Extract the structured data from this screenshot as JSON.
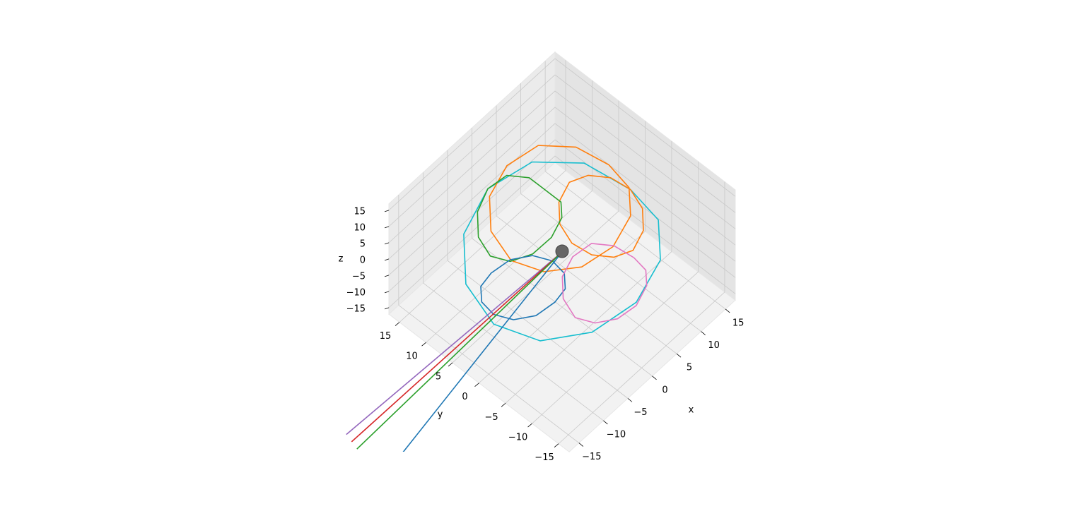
{
  "chart_data": {
    "type": "line3d",
    "xlabel": "x",
    "ylabel": "y",
    "zlabel": "z",
    "xlim": [
      -17,
      17
    ],
    "ylim": [
      -17,
      17
    ],
    "zlim": [
      -17,
      17
    ],
    "xticks": [
      {
        "value": -15,
        "label": "−15"
      },
      {
        "value": -10,
        "label": "−10"
      },
      {
        "value": -5,
        "label": "−5"
      },
      0,
      5,
      10,
      15
    ],
    "yticks": [
      {
        "value": -15,
        "label": "−15"
      },
      {
        "value": -10,
        "label": "−10"
      },
      {
        "value": -5,
        "label": "−5"
      },
      0,
      5,
      10,
      15
    ],
    "zticks": [
      {
        "value": -15,
        "label": "−15"
      },
      {
        "value": -10,
        "label": "−10"
      },
      {
        "value": -5,
        "label": "−5"
      },
      0,
      5,
      10,
      15
    ],
    "grid": true,
    "series": [
      {
        "color": "#17becf",
        "x": [
          14,
          12.1,
          7,
          0,
          -7,
          -12.1,
          -14,
          -12.1,
          -7,
          0,
          7,
          12.1,
          14
        ],
        "y": [
          0,
          7,
          12.1,
          14,
          12.1,
          7,
          0,
          -7,
          -12.1,
          -14,
          -12.1,
          -7,
          0
        ],
        "z": [
          0,
          2,
          3,
          2,
          0,
          -2,
          -3,
          -2,
          0,
          2,
          3,
          2,
          0
        ]
      },
      {
        "color": "#ff7f0e",
        "x": [
          15,
          13.7,
          10,
          5,
          0,
          -3.7,
          -5,
          -3.7,
          0,
          5,
          10,
          13.7,
          15
        ],
        "y": [
          5,
          10,
          13.7,
          15,
          13.7,
          10,
          5,
          0,
          -3.7,
          -5,
          -3.7,
          0,
          5
        ],
        "z": [
          0,
          1,
          2,
          1,
          0,
          -1,
          -2,
          -1,
          0,
          1,
          2,
          1,
          0
        ]
      },
      {
        "color": "#ff7f0e",
        "x": [
          14,
          13.2,
          11,
          8,
          5,
          2.8,
          2,
          2.8,
          5,
          8,
          11,
          13.2,
          14
        ],
        "y": [
          0,
          3,
          5.2,
          6,
          5.2,
          3,
          0,
          -3,
          -5.2,
          -6,
          -5.2,
          -3,
          0
        ],
        "z": [
          0,
          1,
          2,
          3,
          2,
          1,
          0,
          -1,
          -2,
          -3,
          -2,
          -1,
          0
        ]
      },
      {
        "color": "#2ca02c",
        "x": [
          6,
          5.2,
          3,
          0,
          -3,
          -5.2,
          -6,
          -5.2,
          -3,
          0,
          3,
          5.2,
          6
        ],
        "y": [
          8,
          11,
          13.2,
          14,
          13.2,
          11,
          8,
          5,
          2.8,
          2,
          2.8,
          5,
          8
        ],
        "z": [
          0,
          2,
          3,
          2,
          0,
          -2,
          -3,
          -2,
          0,
          2,
          3,
          2,
          0
        ]
      },
      {
        "color": "#1f77b4",
        "x": [
          -2,
          -2.8,
          -5,
          -8,
          -11,
          -13.2,
          -14,
          -13.2,
          -11,
          -8,
          -5,
          -2.8,
          -2
        ],
        "y": [
          0,
          3,
          5.2,
          6,
          5.2,
          3,
          0,
          -3,
          -5.2,
          -6,
          -5.2,
          -3,
          0
        ],
        "z": [
          0,
          -1,
          -2,
          -3,
          -2,
          -1,
          0,
          1,
          2,
          3,
          2,
          1,
          0
        ]
      },
      {
        "color": "#e377c2",
        "x": [
          6,
          5.2,
          3,
          0,
          -3,
          -5.2,
          -6,
          -5.2,
          -3,
          0,
          3,
          5.2,
          6
        ],
        "y": [
          -8,
          -5,
          -2.8,
          -2,
          -2.8,
          -5,
          -8,
          -11,
          -13.2,
          -14,
          -13.2,
          -11,
          -8
        ],
        "z": [
          0,
          1,
          2,
          1,
          0,
          -1,
          -2,
          -1,
          0,
          1,
          2,
          1,
          0
        ]
      },
      {
        "color": "#9467bd",
        "x": [
          0,
          -42
        ],
        "y": [
          0,
          2
        ],
        "z": [
          0,
          -1
        ]
      },
      {
        "color": "#d62728",
        "x": [
          0,
          -42
        ],
        "y": [
          0,
          1
        ],
        "z": [
          0,
          -2
        ]
      },
      {
        "color": "#2ca02c",
        "x": [
          0,
          -42
        ],
        "y": [
          0,
          0
        ],
        "z": [
          0,
          -3
        ]
      },
      {
        "color": "#1f77b4",
        "x": [
          0,
          -40
        ],
        "y": [
          0,
          -6
        ],
        "z": [
          0,
          -1
        ]
      }
    ]
  }
}
